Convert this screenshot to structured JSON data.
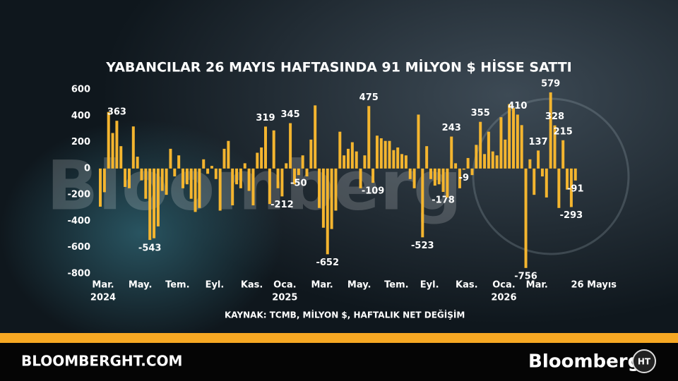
{
  "chart_data": {
    "type": "bar",
    "title": "YABANCILAR 26 MAYIS HAFTASINDA 91 MİLYON $ HİSSE SATTI",
    "source": "KAYNAK: TCMB, MİLYON $, HAFTALIK NET DEĞİŞİM",
    "watermark": "Bloomberg",
    "color": "#f4b52f",
    "ylim": [
      -800,
      600
    ],
    "yticks": [
      -800,
      -600,
      -400,
      -200,
      0,
      200,
      400,
      600
    ],
    "categories": [
      "Mar.",
      null,
      null,
      null,
      null,
      null,
      null,
      null,
      null,
      "May.",
      null,
      null,
      null,
      null,
      null,
      null,
      null,
      null,
      "Tem.",
      null,
      null,
      null,
      null,
      null,
      null,
      null,
      null,
      "Eyl.",
      null,
      null,
      null,
      null,
      null,
      null,
      null,
      null,
      "Kas.",
      null,
      null,
      null,
      null,
      null,
      null,
      null,
      "Oca.",
      null,
      null,
      null,
      null,
      null,
      null,
      null,
      null,
      "Mar.",
      null,
      null,
      null,
      null,
      null,
      null,
      null,
      null,
      "May.",
      null,
      null,
      null,
      null,
      null,
      null,
      null,
      null,
      "Tem.",
      null,
      null,
      null,
      null,
      null,
      null,
      null,
      "Eyl.",
      null,
      null,
      null,
      null,
      null,
      null,
      null,
      null,
      "Kas.",
      null,
      null,
      null,
      null,
      null,
      null,
      null,
      null,
      "Oca.",
      null,
      null,
      null,
      null,
      null,
      null,
      null,
      "Mar.",
      null,
      null,
      null,
      null,
      null,
      null,
      null,
      null,
      null,
      "26 Mayıs"
    ],
    "years": [
      "2024",
      null,
      null,
      null,
      null,
      null,
      null,
      null,
      null,
      null,
      null,
      null,
      null,
      null,
      null,
      null,
      null,
      null,
      null,
      null,
      null,
      null,
      null,
      null,
      null,
      null,
      null,
      null,
      null,
      null,
      null,
      null,
      null,
      null,
      null,
      null,
      null,
      null,
      null,
      null,
      null,
      null,
      null,
      null,
      "2025",
      null,
      null,
      null,
      null,
      null,
      null,
      null,
      null,
      null,
      null,
      null,
      null,
      null,
      null,
      null,
      null,
      null,
      null,
      null,
      null,
      null,
      null,
      null,
      null,
      null,
      null,
      null,
      null,
      null,
      null,
      null,
      null,
      null,
      null,
      null,
      null,
      null,
      null,
      null,
      null,
      null,
      null,
      null,
      null,
      null,
      null,
      null,
      null,
      null,
      null,
      null,
      null,
      "2026",
      null,
      null,
      null,
      null,
      null,
      null,
      null,
      null,
      null,
      null,
      null,
      null,
      null,
      null,
      null,
      null,
      null,
      null
    ],
    "values": [
      -290,
      -180,
      430,
      270,
      363,
      170,
      -140,
      -150,
      320,
      90,
      -90,
      -230,
      -543,
      -530,
      -440,
      -170,
      -200,
      150,
      -60,
      100,
      -150,
      -120,
      -230,
      -330,
      -300,
      70,
      -40,
      20,
      -80,
      -320,
      150,
      210,
      -280,
      -120,
      -150,
      40,
      -170,
      -280,
      120,
      160,
      319,
      -270,
      290,
      -150,
      -212,
      40,
      345,
      -120,
      -50,
      100,
      -60,
      220,
      480,
      -300,
      -450,
      -652,
      -460,
      -320,
      280,
      100,
      150,
      200,
      130,
      -150,
      100,
      475,
      -109,
      250,
      230,
      210,
      210,
      140,
      160,
      110,
      100,
      -80,
      -150,
      410,
      -523,
      170,
      -80,
      -130,
      -120,
      -178,
      -220,
      243,
      40,
      -150,
      -9,
      80,
      -50,
      180,
      355,
      110,
      280,
      130,
      100,
      390,
      220,
      490,
      460,
      410,
      330,
      -756,
      70,
      -200,
      137,
      -60,
      -220,
      579,
      328,
      -300,
      215,
      -160,
      -293,
      -91
    ],
    "value_labels": [
      null,
      null,
      null,
      null,
      "363",
      null,
      null,
      null,
      null,
      null,
      null,
      null,
      "-543",
      null,
      null,
      null,
      null,
      null,
      null,
      null,
      null,
      null,
      null,
      null,
      null,
      null,
      null,
      null,
      null,
      null,
      null,
      null,
      null,
      null,
      null,
      null,
      null,
      null,
      null,
      null,
      "319",
      null,
      null,
      null,
      "-212",
      null,
      "345",
      null,
      "-50",
      null,
      null,
      null,
      null,
      null,
      null,
      "-652",
      null,
      null,
      null,
      null,
      null,
      null,
      null,
      null,
      null,
      "475",
      "-109",
      null,
      null,
      null,
      null,
      null,
      null,
      null,
      null,
      null,
      null,
      null,
      "-523",
      null,
      null,
      null,
      null,
      "-178",
      null,
      "243",
      null,
      null,
      "-9",
      null,
      null,
      null,
      "355",
      null,
      null,
      null,
      null,
      null,
      null,
      null,
      null,
      "410",
      null,
      "-756",
      null,
      null,
      "137",
      null,
      null,
      "579",
      "328",
      null,
      "215",
      null,
      "-293",
      "-91"
    ],
    "footer_site": "BLOOMBERGHT.COM",
    "footer_brand": "Bloomberg",
    "footer_logo": "HT"
  }
}
